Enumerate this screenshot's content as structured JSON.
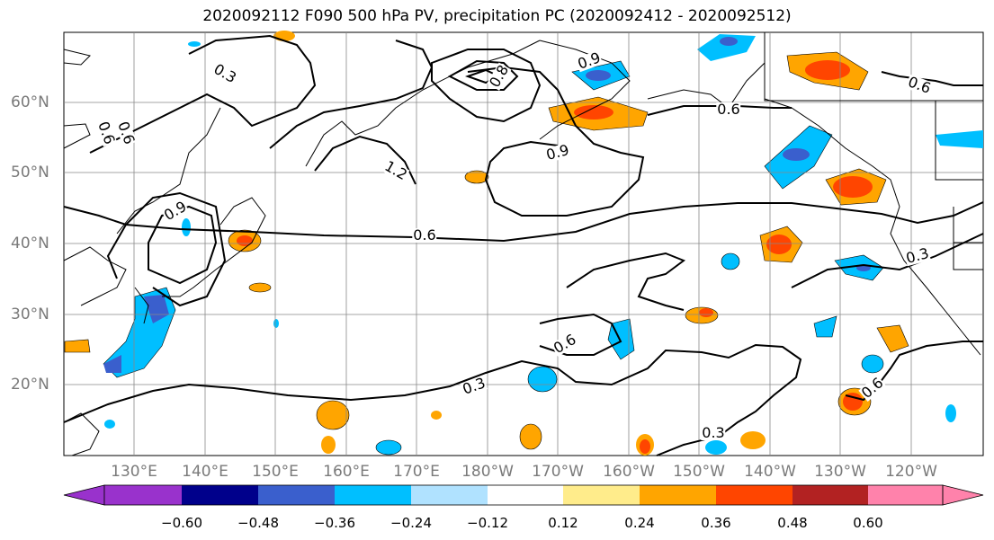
{
  "title": "2020092112 F090 500 hPa PV, precipitation PC (2020092412 - 2020092512)",
  "lat_labels": [
    "60°N",
    "50°N",
    "40°N",
    "30°N",
    "20°N"
  ],
  "lon_labels": [
    "130°E",
    "140°E",
    "150°E",
    "160°E",
    "170°E",
    "180°W",
    "170°W",
    "160°W",
    "150°W",
    "140°W",
    "130°W",
    "120°W"
  ],
  "contour_labels": [
    "0.3",
    "0.6",
    "0.9",
    "1.2",
    "0.8",
    "0.6",
    "0.9",
    "0.6",
    "0.9",
    "0.6",
    "0.3",
    "0.6",
    "0.3",
    "0.6",
    "0.3",
    "0.6"
  ],
  "colorbar": {
    "ticks": [
      "−0.60",
      "−0.48",
      "−0.36",
      "−0.24",
      "−0.12",
      "0.12",
      "0.24",
      "0.36",
      "0.48",
      "0.60"
    ],
    "colors": [
      "#9932cc",
      "#00008b",
      "#3a5fcd",
      "#00bfff",
      "#b0e2ff",
      "#ffffff",
      "#ffec8b",
      "#ffa500",
      "#ff4500",
      "#b22222",
      "#ff82ab"
    ]
  }
}
